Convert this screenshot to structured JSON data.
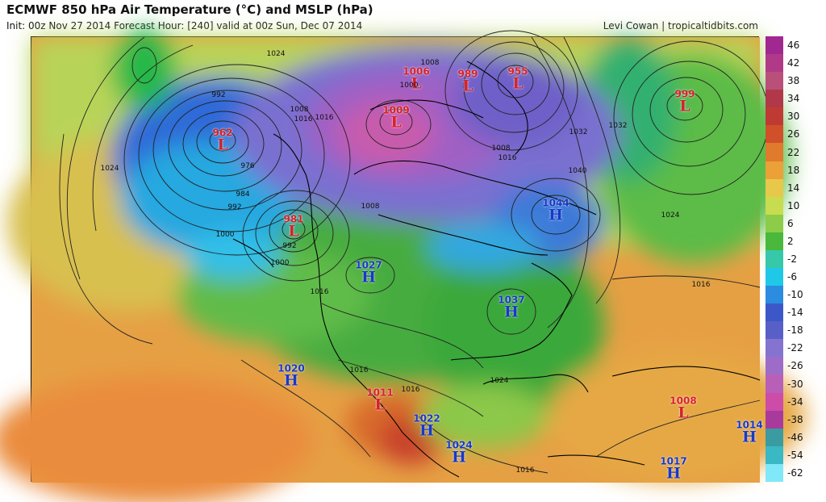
{
  "header": {
    "title": "ECMWF 850 hPa Air Temperature (°C) and MSLP (hPa)",
    "subtitle": "Init: 00z Nov 27 2014   Forecast Hour: [240]   valid at 00z Sun, Dec 07 2014",
    "credit": "Levi Cowan | tropicaltidbits.com"
  },
  "colorbar": {
    "labels": [
      "46",
      "42",
      "38",
      "34",
      "30",
      "26",
      "22",
      "18",
      "14",
      "10",
      "6",
      "2",
      "-2",
      "-6",
      "-10",
      "-14",
      "-18",
      "-22",
      "-26",
      "-30",
      "-34",
      "-38",
      "-46",
      "-54",
      "-62"
    ],
    "colors": [
      "#a02890",
      "#b03a88",
      "#b8507a",
      "#b03848",
      "#c03a34",
      "#d0502a",
      "#e07a2c",
      "#eca038",
      "#e8c84a",
      "#c8dc50",
      "#8ccc48",
      "#4ab83c",
      "#36c8a8",
      "#20c8e8",
      "#2c8ce0",
      "#3c58c8",
      "#5860c8",
      "#8474d0",
      "#9c6cc8",
      "#b860b8",
      "#cc4ca8",
      "#a83a9c",
      "#3a9ca0",
      "#3ab8c4",
      "#80e8f8"
    ]
  },
  "pressure_centers": [
    {
      "type": "L",
      "value": "962"
    },
    {
      "type": "L",
      "value": "981"
    },
    {
      "type": "L",
      "value": "1009"
    },
    {
      "type": "L",
      "value": "1006"
    },
    {
      "type": "L",
      "value": "989"
    },
    {
      "type": "L",
      "value": "955"
    },
    {
      "type": "L",
      "value": "999"
    },
    {
      "type": "L",
      "value": "1011"
    },
    {
      "type": "L",
      "value": "1008"
    },
    {
      "type": "H",
      "value": "1027"
    },
    {
      "type": "H",
      "value": "1044"
    },
    {
      "type": "H",
      "value": "1037"
    },
    {
      "type": "H",
      "value": "1020"
    },
    {
      "type": "H",
      "value": "1022"
    },
    {
      "type": "H",
      "value": "1024"
    },
    {
      "type": "H",
      "value": "1017"
    },
    {
      "type": "H",
      "value": "1014"
    }
  ],
  "isobar_labels": [
    "1024",
    "1008",
    "1016",
    "1000",
    "1008",
    "1016",
    "1032",
    "1032",
    "1040",
    "1016",
    "1024",
    "992",
    "976",
    "984",
    "992",
    "1000",
    "992",
    "1000",
    "1016",
    "1008",
    "1024",
    "1016",
    "1016",
    "1008",
    "1024",
    "1016",
    "1016"
  ]
}
